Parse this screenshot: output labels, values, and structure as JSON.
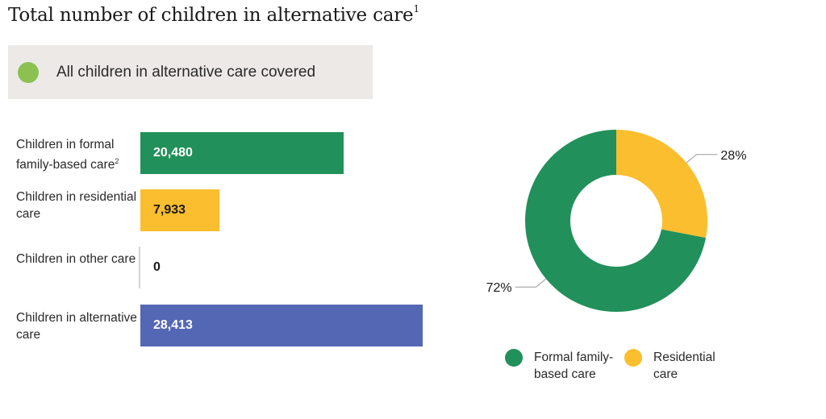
{
  "title": "Total number of children in alternative care",
  "title_note": "1",
  "coverage": {
    "text": "All children in alternative care covered",
    "color": "#8cc152"
  },
  "chart_data": [
    {
      "type": "bar",
      "categories": [
        "Children in formal family-based care",
        "Children in residential care",
        "Children in other care",
        "Children in alternative care"
      ],
      "values": [
        20480,
        7933,
        0,
        28413
      ],
      "value_labels": [
        "20,480",
        "7,933",
        "0",
        "28,413"
      ],
      "category_notes": [
        "2",
        "",
        "",
        ""
      ],
      "colors": [
        "#22905a",
        "#fbbe2e",
        "#d9d5cf",
        "#5467b4"
      ]
    },
    {
      "type": "pie",
      "categories": [
        "Formal family-based care",
        "Residential care"
      ],
      "values": [
        72,
        28
      ],
      "value_labels": [
        "72%",
        "28%"
      ],
      "colors": [
        "#22905a",
        "#fbbe2e"
      ],
      "legend_position": "bottom"
    }
  ]
}
